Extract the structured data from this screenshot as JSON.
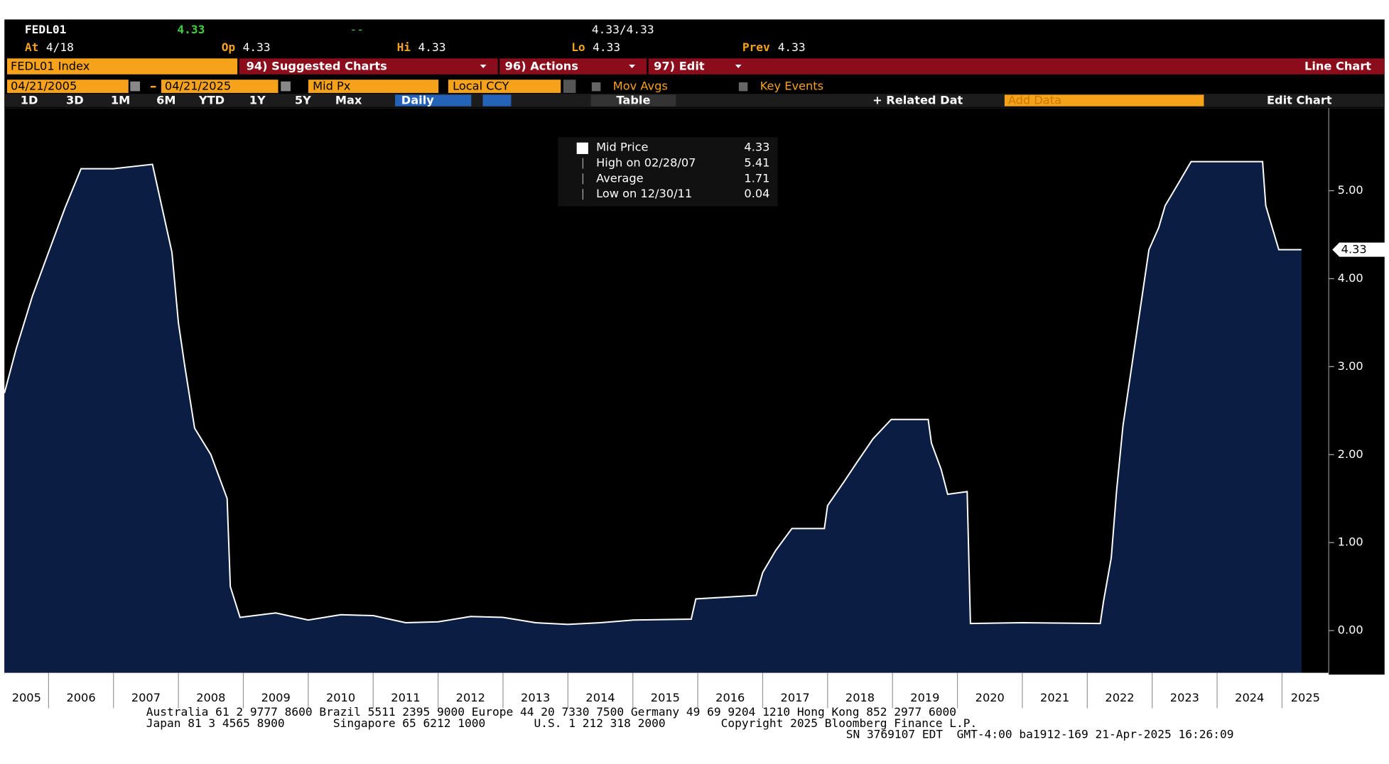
{
  "header": {
    "ticker": "FEDL01",
    "last": "4.33",
    "change": "--",
    "bid_ask": "4.33/4.33",
    "fields": [
      {
        "label": "At",
        "value": "4/18"
      },
      {
        "label": "Op",
        "value": "4.33"
      },
      {
        "label": "Hi",
        "value": "4.33"
      },
      {
        "label": "Lo",
        "value": "4.33"
      },
      {
        "label": "Prev",
        "value": "4.33"
      }
    ]
  },
  "toolbar": {
    "security": "FEDL01 Index",
    "menus": [
      "94) Suggested Charts",
      "96) Actions",
      "97) Edit"
    ],
    "chart_type": "Line Chart",
    "start_date": "04/21/2005",
    "end_date": "04/21/2025",
    "price": "Mid Px",
    "currency": "Local CCY",
    "options": [
      "Mov Avgs",
      "Key Events"
    ],
    "ranges": [
      "1D",
      "3D",
      "1M",
      "6M",
      "YTD",
      "1Y",
      "5Y",
      "Max"
    ],
    "frequency": "Daily",
    "table": "Table",
    "related": "+ Related Dat",
    "add_data": "Add Data",
    "edit_chart": "Edit Chart"
  },
  "chart_data": {
    "type": "line",
    "color": "#ffffff",
    "fill": "#0b1d42",
    "x": [
      2005.32,
      2005.5,
      2005.75,
      2006.0,
      2006.25,
      2006.5,
      2007.0,
      2007.6,
      2007.75,
      2007.9,
      2008.0,
      2008.1,
      2008.25,
      2008.5,
      2008.75,
      2008.8,
      2008.95,
      2009.5,
      2010.0,
      2010.5,
      2011.0,
      2011.5,
      2012.0,
      2012.5,
      2013.0,
      2013.5,
      2014.0,
      2014.5,
      2015.0,
      2015.9,
      2015.97,
      2016.9,
      2017.0,
      2017.2,
      2017.45,
      2017.95,
      2018.0,
      2018.25,
      2018.45,
      2018.7,
      2018.98,
      2019.55,
      2019.6,
      2019.75,
      2019.85,
      2020.15,
      2020.2,
      2021.0,
      2022.2,
      2022.25,
      2022.37,
      2022.45,
      2022.55,
      2022.7,
      2022.85,
      2022.95,
      2023.1,
      2023.2,
      2023.4,
      2023.6,
      2024.7,
      2024.75,
      2024.85,
      2024.95,
      2025.3
    ],
    "values": [
      2.7,
      3.2,
      3.8,
      4.3,
      4.8,
      5.25,
      5.25,
      5.3,
      4.8,
      4.3,
      3.5,
      3.0,
      2.3,
      2.0,
      1.5,
      0.5,
      0.15,
      0.2,
      0.12,
      0.18,
      0.17,
      0.09,
      0.1,
      0.16,
      0.15,
      0.09,
      0.07,
      0.09,
      0.12,
      0.13,
      0.36,
      0.4,
      0.66,
      0.91,
      1.16,
      1.16,
      1.42,
      1.69,
      1.91,
      2.18,
      2.4,
      2.4,
      2.13,
      1.83,
      1.55,
      1.58,
      0.08,
      0.09,
      0.08,
      0.33,
      0.83,
      1.58,
      2.33,
      3.08,
      3.83,
      4.33,
      4.58,
      4.83,
      5.08,
      5.33,
      5.33,
      4.83,
      4.58,
      4.33,
      4.33
    ],
    "xlim": [
      2005.32,
      2025.72
    ],
    "xticks": [
      2005,
      2006,
      2007,
      2008,
      2009,
      2010,
      2011,
      2012,
      2013,
      2014,
      2015,
      2016,
      2017,
      2018,
      2019,
      2020,
      2021,
      2022,
      2023,
      2024,
      2025
    ],
    "ylim": [
      -0.48,
      5.94
    ],
    "yticks": [
      {
        "value": 0,
        "label": "0.00"
      },
      {
        "value": 1,
        "label": "1.00"
      },
      {
        "value": 2,
        "label": "2.00"
      },
      {
        "value": 3,
        "label": "3.00"
      },
      {
        "value": 4,
        "label": "4.00"
      },
      {
        "value": 5,
        "label": "5.00"
      }
    ],
    "grid": false,
    "last_value": 4.33,
    "legend": [
      {
        "label": "Mid Price",
        "value": 4.33
      },
      {
        "label": "High on 02/28/07",
        "value": 5.41
      },
      {
        "label": "Average",
        "value": 1.71
      },
      {
        "label": "Low on 12/30/11",
        "value": 0.04
      }
    ]
  },
  "footer": [
    "Australia 61 2 9777 8600 Brazil 5511 2395 9000 Europe 44 20 7330 7500 Germany 49 69 9204 1210 Hong Kong 852 2977 6000",
    "Japan 81 3 4565 8900       Singapore 65 6212 1000       U.S. 1 212 318 2000        Copyright 2025 Bloomberg Finance L.P.",
    "SN 3769107 EDT  GMT-4:00 ba1912-169 21-Apr-2025 16:26:09"
  ]
}
